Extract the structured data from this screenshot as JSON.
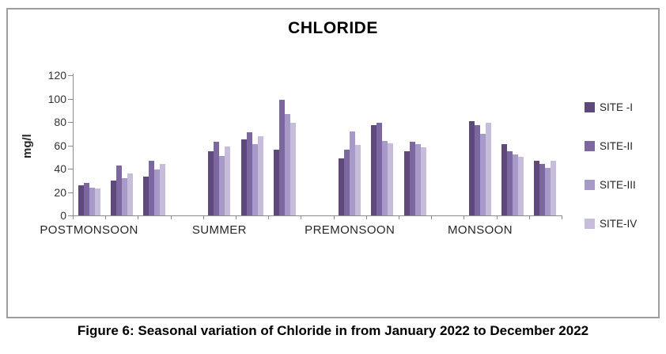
{
  "figure": {
    "caption": "Figure 6: Seasonal variation of Chloride in from January 2022 to December 2022"
  },
  "chart_data": {
    "type": "bar",
    "title": "CHLORIDE",
    "xlabel": "",
    "ylabel": "mg/l",
    "ylim": [
      0,
      120
    ],
    "yticks": [
      0,
      20,
      40,
      60,
      80,
      100,
      120
    ],
    "grid": false,
    "legend_position": "right",
    "categories": [
      "POSTMONSOON",
      "SUMMER",
      "PREMONSOON",
      "MONSOON"
    ],
    "clusters_per_category": 3,
    "series": [
      {
        "name": "SITE -I",
        "color": "#5F497A",
        "values": [
          [
            26,
            30,
            33
          ],
          [
            55,
            65,
            56
          ],
          [
            49,
            77,
            55
          ],
          [
            81,
            61,
            47
          ]
        ]
      },
      {
        "name": "SITE-II",
        "color": "#7C67A0",
        "values": [
          [
            28,
            43,
            47
          ],
          [
            63,
            71,
            99
          ],
          [
            56,
            79,
            63
          ],
          [
            77,
            55,
            44
          ]
        ]
      },
      {
        "name": "SITE-III",
        "color": "#A79AC8",
        "values": [
          [
            24,
            32,
            39
          ],
          [
            51,
            61,
            87
          ],
          [
            72,
            64,
            61
          ],
          [
            70,
            52,
            41
          ]
        ]
      },
      {
        "name": "SITE-IV",
        "color": "#C7BDDA",
        "values": [
          [
            23,
            36,
            44
          ],
          [
            59,
            68,
            79
          ],
          [
            60,
            62,
            58
          ],
          [
            79,
            50,
            47
          ]
        ]
      }
    ]
  }
}
